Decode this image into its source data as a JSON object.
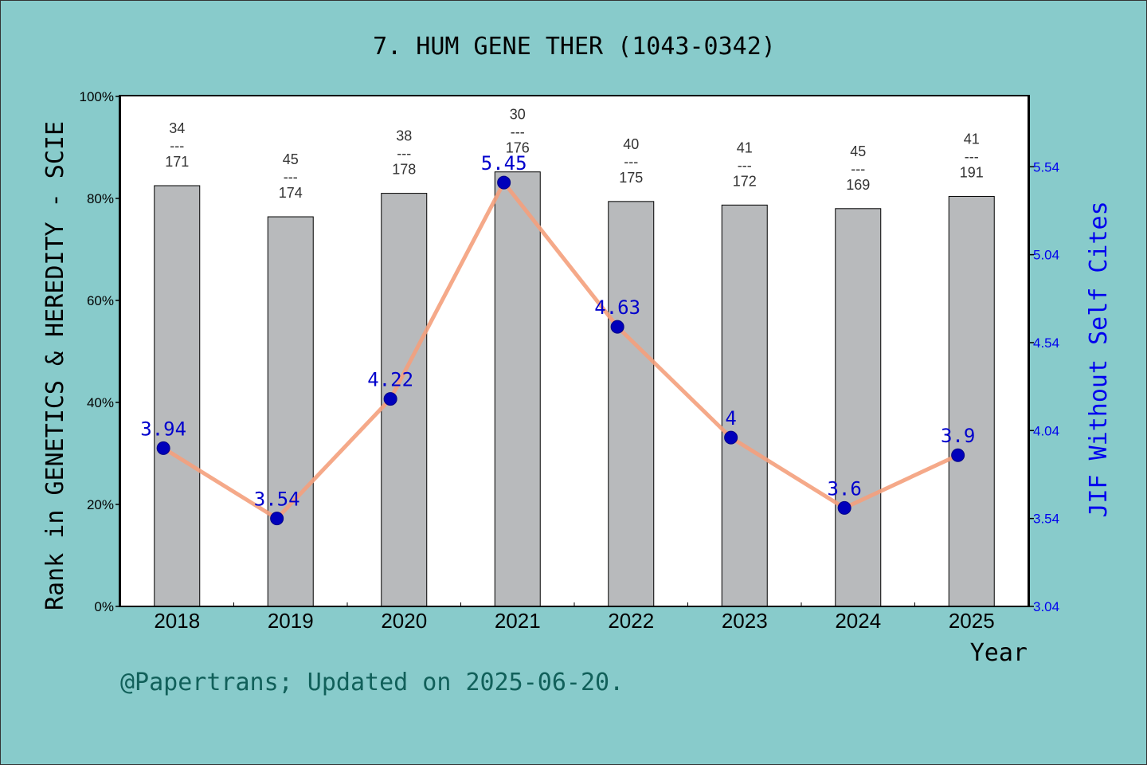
{
  "chart_data": {
    "type": "bar+line",
    "title": "7. HUM GENE THER (1043-0342)",
    "xlabel": "Year",
    "ylabel_left": "Rank in GENETICS & HEREDITY - SCIE",
    "ylabel_right": "JIF Without Self Cites",
    "categories": [
      "2018",
      "2019",
      "2020",
      "2021",
      "2022",
      "2023",
      "2024",
      "2025"
    ],
    "bars": {
      "values_pct": [
        82.5,
        76.4,
        81.0,
        85.2,
        79.4,
        78.7,
        78.0,
        80.4
      ],
      "rank": [
        "34",
        "45",
        "38",
        "30",
        "40",
        "41",
        "45",
        "41"
      ],
      "total": [
        "171",
        "174",
        "178",
        "176",
        "175",
        "172",
        "169",
        "191"
      ],
      "separator": "---",
      "color": "#b8babc"
    },
    "line": {
      "values": [
        3.94,
        3.54,
        4.22,
        5.45,
        4.63,
        4.0,
        3.6,
        3.9
      ],
      "labels": [
        "3.94",
        "3.54",
        "4.22",
        "5.45",
        "4.63",
        "4",
        "3.6",
        "3.9"
      ],
      "line_color": "#f4a07c",
      "marker_color": "#0000bb"
    },
    "y_left": {
      "ylim": [
        0,
        100
      ],
      "ticks": [
        0,
        20,
        40,
        60,
        80,
        100
      ],
      "tick_labels": [
        "0%",
        "20%",
        "40%",
        "60%",
        "80%",
        "100%"
      ]
    },
    "y_right": {
      "ylim": [
        3.04,
        5.94
      ],
      "ticks": [
        3.04,
        3.54,
        4.04,
        4.54,
        5.04,
        5.54
      ],
      "tick_labels": [
        "3.04",
        "3.54",
        "4.04",
        "4.54",
        "5.04",
        "5.54"
      ]
    },
    "grid": false,
    "background": "#88cbcb",
    "plot_background": "#ffffff"
  },
  "footer": "@Papertrans; Updated on 2025-06-20."
}
